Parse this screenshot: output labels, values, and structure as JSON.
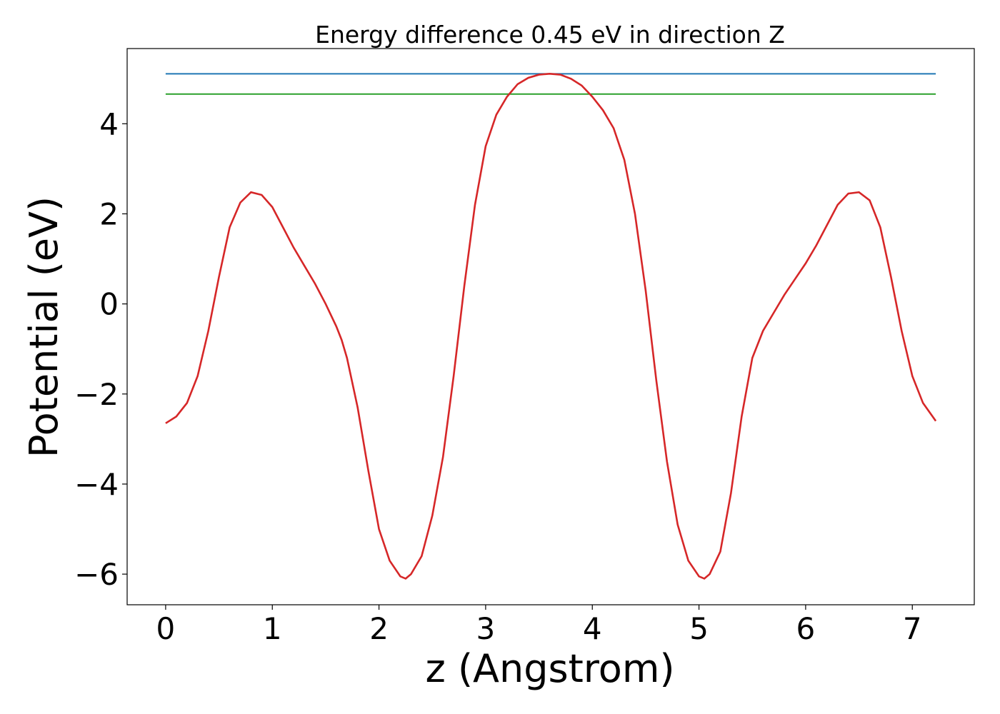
{
  "chart_data": {
    "type": "line",
    "title": "Energy difference 0.45 eV in direction Z",
    "xlabel": "z (Angstrom)",
    "ylabel": "Potential (eV)",
    "xlim": [
      -0.361,
      7.581
    ],
    "ylim": [
      -6.68,
      5.67
    ],
    "xticks": [
      0,
      1,
      2,
      3,
      4,
      5,
      6,
      7
    ],
    "yticks": [
      {
        "value": -6,
        "label": "−6"
      },
      {
        "value": -4,
        "label": "−4"
      },
      {
        "value": -2,
        "label": "−2"
      },
      0,
      2,
      4
    ],
    "series": [
      {
        "color": "#1f77b4",
        "x": [
          0,
          7.22
        ],
        "values": [
          5.11,
          5.11
        ]
      },
      {
        "color": "#2ca02c",
        "x": [
          0,
          7.22
        ],
        "values": [
          4.66,
          4.66
        ]
      },
      {
        "color": "#d62728",
        "x": [
          0,
          0.1,
          0.2,
          0.3,
          0.4,
          0.5,
          0.6,
          0.7,
          0.8,
          0.9,
          1.0,
          1.1,
          1.2,
          1.3,
          1.4,
          1.5,
          1.6,
          1.65,
          1.7,
          1.8,
          1.9,
          2.0,
          2.1,
          2.2,
          2.25,
          2.3,
          2.4,
          2.5,
          2.6,
          2.7,
          2.8,
          2.9,
          3.0,
          3.1,
          3.2,
          3.3,
          3.4,
          3.5,
          3.6,
          3.7,
          3.8,
          3.9,
          4.0,
          4.1,
          4.2,
          4.3,
          4.4,
          4.5,
          4.6,
          4.7,
          4.8,
          4.9,
          5.0,
          5.05,
          5.1,
          5.2,
          5.3,
          5.4,
          5.5,
          5.6,
          5.7,
          5.8,
          5.9,
          6.0,
          6.1,
          6.2,
          6.3,
          6.4,
          6.5,
          6.6,
          6.7,
          6.8,
          6.9,
          7.0,
          7.1,
          7.22
        ],
        "values": [
          -2.65,
          -2.5,
          -2.2,
          -1.6,
          -0.6,
          0.6,
          1.7,
          2.25,
          2.48,
          2.42,
          2.15,
          1.7,
          1.25,
          0.85,
          0.45,
          0.0,
          -0.5,
          -0.8,
          -1.2,
          -2.3,
          -3.7,
          -5.0,
          -5.7,
          -6.05,
          -6.1,
          -6.0,
          -5.6,
          -4.7,
          -3.4,
          -1.6,
          0.4,
          2.2,
          3.5,
          4.2,
          4.6,
          4.88,
          5.02,
          5.09,
          5.11,
          5.09,
          5.0,
          4.85,
          4.6,
          4.3,
          3.9,
          3.2,
          2.0,
          0.3,
          -1.7,
          -3.5,
          -4.9,
          -5.7,
          -6.05,
          -6.1,
          -6.0,
          -5.5,
          -4.2,
          -2.5,
          -1.2,
          -0.6,
          -0.2,
          0.2,
          0.55,
          0.9,
          1.3,
          1.75,
          2.2,
          2.45,
          2.48,
          2.3,
          1.7,
          0.6,
          -0.6,
          -1.6,
          -2.2,
          -2.6
        ]
      }
    ]
  }
}
